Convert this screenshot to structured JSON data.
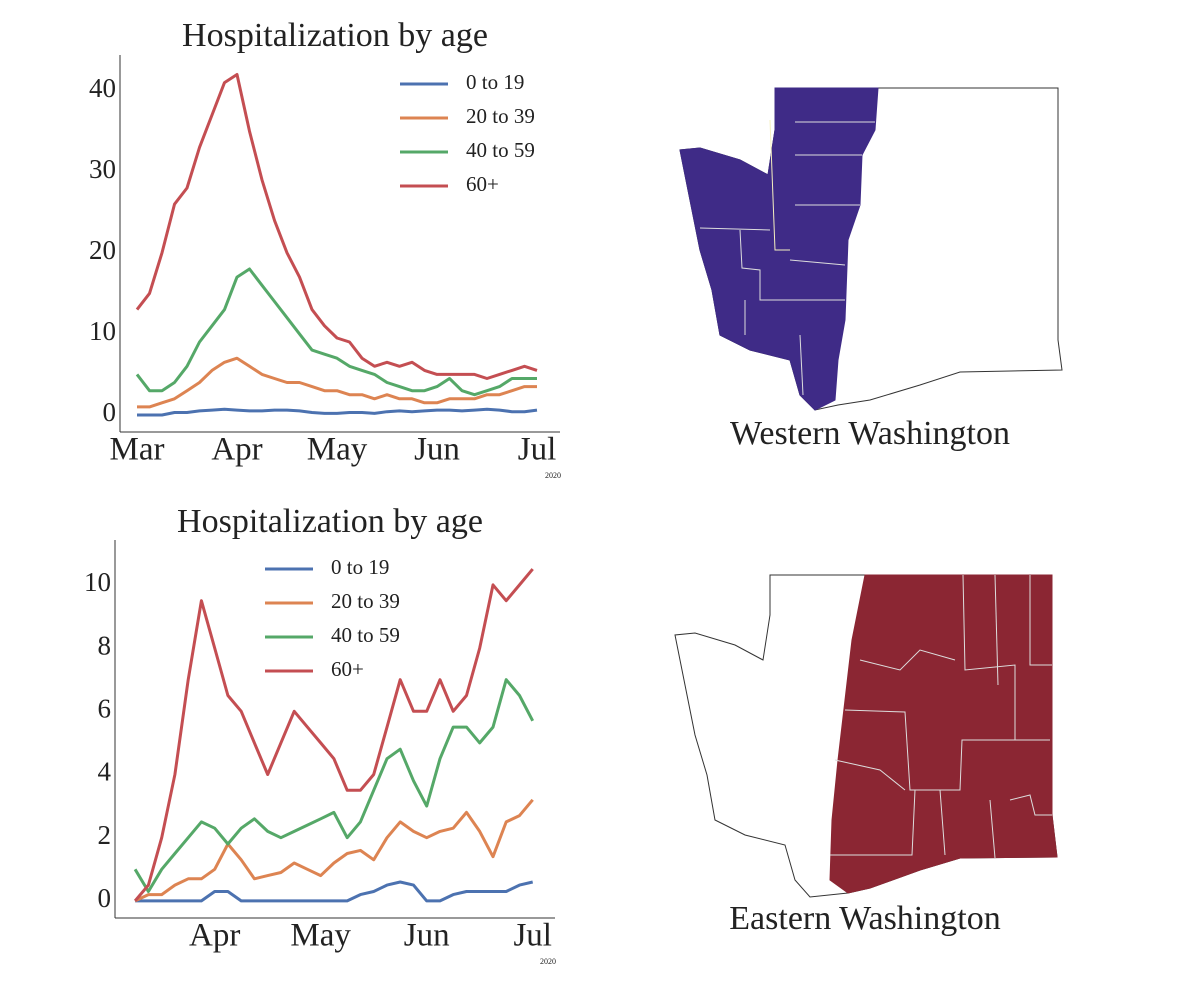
{
  "chart_data": [
    {
      "type": "line",
      "title": "Hospitalization by age",
      "x_annotation": "2020",
      "x": [
        3,
        3.125,
        3.25,
        3.375,
        3.5,
        3.625,
        3.75,
        3.875,
        4,
        4.125,
        4.25,
        4.375,
        4.5,
        4.625,
        4.75,
        4.875,
        5,
        5.125,
        5.25,
        5.375,
        5.5,
        5.625,
        5.75,
        5.875,
        6,
        6.125,
        6.25,
        6.375,
        6.5,
        6.625,
        6.75,
        6.875,
        7
      ],
      "series": [
        {
          "name": "0 to 19",
          "color": "#4c72b0",
          "values": [
            0,
            0,
            0,
            0.3,
            0.3,
            0.5,
            0.6,
            0.7,
            0.6,
            0.5,
            0.5,
            0.6,
            0.6,
            0.5,
            0.3,
            0.2,
            0.2,
            0.3,
            0.3,
            0.2,
            0.4,
            0.5,
            0.4,
            0.5,
            0.6,
            0.6,
            0.5,
            0.6,
            0.7,
            0.6,
            0.4,
            0.4,
            0.6
          ]
        },
        {
          "name": "20 to 39",
          "color": "#dd8452",
          "values": [
            1,
            1,
            1.5,
            2,
            3,
            4,
            5.5,
            6.5,
            7,
            6,
            5,
            4.5,
            4,
            4,
            3.5,
            3,
            3,
            2.5,
            2.5,
            2,
            2.5,
            2,
            2,
            1.5,
            1.5,
            2,
            2,
            2,
            2.5,
            2.5,
            3,
            3.5,
            3.5
          ]
        },
        {
          "name": "40 to 59",
          "color": "#55a868",
          "values": [
            5,
            3,
            3,
            4,
            6,
            9,
            11,
            13,
            17,
            18,
            16,
            14,
            12,
            10,
            8,
            7.5,
            7,
            6,
            5.5,
            5,
            4,
            3.5,
            3,
            3,
            3.5,
            4.5,
            3,
            2.5,
            3,
            3.5,
            4.5,
            4.5,
            4.5
          ]
        },
        {
          "name": "60+",
          "color": "#c44e52",
          "values": [
            13,
            15,
            20,
            26,
            28,
            33,
            37,
            41,
            42,
            35,
            29,
            24,
            20,
            17,
            13,
            11,
            9.5,
            9,
            7,
            6,
            6.5,
            6,
            6.5,
            5.5,
            5,
            5,
            5,
            5,
            4.5,
            5,
            5.5,
            6,
            5.5
          ]
        }
      ],
      "xlim": [
        2.83,
        7.23
      ],
      "ylim": [
        -2.1,
        44.4
      ],
      "xticks": [
        {
          "value": 3,
          "label": "Mar"
        },
        {
          "value": 4,
          "label": "Apr"
        },
        {
          "value": 5,
          "label": "May"
        },
        {
          "value": 6,
          "label": "Jun"
        },
        {
          "value": 7,
          "label": "Jul"
        }
      ],
      "yticks": [
        0,
        10,
        20,
        30,
        40
      ],
      "grid": false,
      "legend": "upper right"
    },
    {
      "type": "line",
      "title": "Hospitalization by age",
      "x_annotation": "2020",
      "x": [
        3.25,
        3.375,
        3.5,
        3.625,
        3.75,
        3.875,
        4,
        4.125,
        4.25,
        4.375,
        4.5,
        4.625,
        4.75,
        4.875,
        5,
        5.125,
        5.25,
        5.375,
        5.5,
        5.625,
        5.75,
        5.875,
        6,
        6.125,
        6.25,
        6.375,
        6.5,
        6.625,
        6.75,
        6.875,
        7
      ],
      "series": [
        {
          "name": "0 to 19",
          "color": "#4c72b0",
          "values": [
            0,
            0,
            0,
            0,
            0,
            0,
            0.3,
            0.3,
            0,
            0,
            0,
            0,
            0,
            0,
            0,
            0,
            0,
            0.2,
            0.3,
            0.5,
            0.6,
            0.5,
            0,
            0,
            0.2,
            0.3,
            0.3,
            0.3,
            0.3,
            0.5,
            0.6
          ]
        },
        {
          "name": "20 to 39",
          "color": "#dd8452",
          "values": [
            0,
            0.2,
            0.2,
            0.5,
            0.7,
            0.7,
            1,
            1.8,
            1.3,
            0.7,
            0.8,
            0.9,
            1.2,
            1,
            0.8,
            1.2,
            1.5,
            1.6,
            1.3,
            2,
            2.5,
            2.2,
            2,
            2.2,
            2.3,
            2.8,
            2.2,
            1.4,
            2.5,
            2.7,
            3.2
          ]
        },
        {
          "name": "40 to 59",
          "color": "#55a868",
          "values": [
            1,
            0.3,
            1,
            1.5,
            2,
            2.5,
            2.3,
            1.8,
            2.3,
            2.6,
            2.2,
            2,
            2.2,
            2.4,
            2.6,
            2.8,
            2,
            2.5,
            3.5,
            4.5,
            4.8,
            3.8,
            3,
            4.5,
            5.5,
            5.5,
            5,
            5.5,
            7,
            6.5,
            5.7
          ]
        },
        {
          "name": "60+",
          "color": "#c44e52",
          "values": [
            0,
            0.5,
            2,
            4,
            7,
            9.5,
            8,
            6.5,
            6,
            5,
            4,
            5,
            6,
            5.5,
            5,
            4.5,
            3.5,
            3.5,
            4,
            5.5,
            7,
            6,
            6,
            7,
            6,
            6.5,
            8,
            10,
            9.5,
            10,
            10.5
          ]
        }
      ],
      "xlim": [
        3.06,
        7.21
      ],
      "ylim": [
        -0.54,
        11.42
      ],
      "xticks": [
        {
          "value": 4,
          "label": "Apr"
        },
        {
          "value": 5,
          "label": "May"
        },
        {
          "value": 6,
          "label": "Jun"
        },
        {
          "value": 7,
          "label": "Jul"
        }
      ],
      "yticks": [
        0,
        2,
        4,
        6,
        8,
        10
      ],
      "grid": false,
      "legend": "upper center"
    }
  ],
  "maps": [
    {
      "label": "Western Washington"
    },
    {
      "label": "Eastern Washington"
    }
  ]
}
